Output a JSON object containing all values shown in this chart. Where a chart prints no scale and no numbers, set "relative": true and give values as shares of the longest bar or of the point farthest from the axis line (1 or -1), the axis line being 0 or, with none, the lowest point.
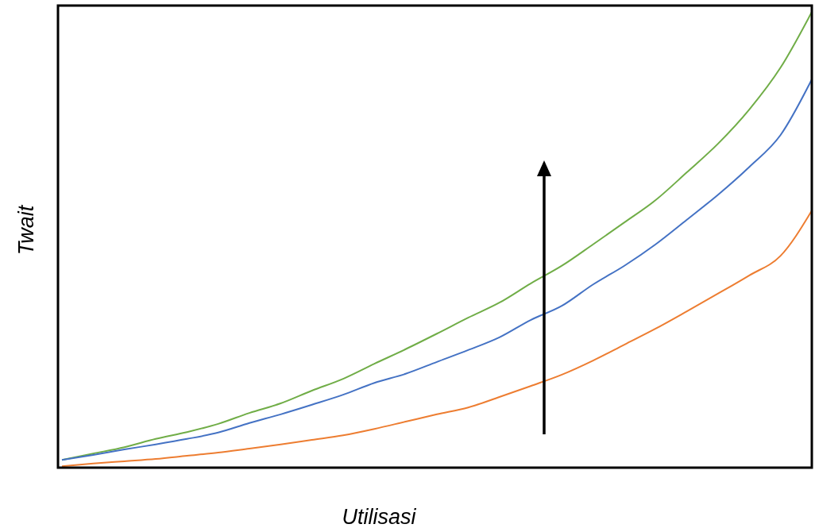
{
  "chart_data": {
    "type": "line",
    "relative": true,
    "xlabel": "Utilisasi",
    "ylabel": "Twait",
    "marker": "none",
    "line_style": "solid",
    "categories": [
      null,
      null,
      null,
      null,
      null,
      null,
      null,
      null,
      null,
      null,
      null,
      null,
      null,
      null,
      null,
      null,
      null,
      null,
      null,
      null,
      null,
      null,
      null,
      null,
      null
    ],
    "series": [
      {
        "color": "#70ad47",
        "values": [
          0.017,
          0.031,
          0.045,
          0.063,
          0.078,
          0.096,
          0.12,
          0.141,
          0.169,
          0.195,
          0.228,
          0.26,
          0.294,
          0.329,
          0.362,
          0.404,
          0.443,
          0.49,
          0.538,
          0.587,
          0.648,
          0.711,
          0.786,
          0.878,
          1
        ]
      },
      {
        "color": "#4472c4",
        "values": [
          0.017,
          0.028,
          0.04,
          0.051,
          0.063,
          0.077,
          0.098,
          0.117,
          0.138,
          0.16,
          0.186,
          0.206,
          0.232,
          0.258,
          0.286,
          0.324,
          0.355,
          0.402,
          0.443,
          0.49,
          0.544,
          0.599,
          0.66,
          0.73,
          0.852
        ]
      },
      {
        "color": "#ed7d31",
        "values": [
          0.003,
          0.009,
          0.014,
          0.019,
          0.026,
          0.033,
          0.042,
          0.051,
          0.061,
          0.071,
          0.085,
          0.101,
          0.117,
          0.132,
          0.155,
          0.179,
          0.204,
          0.235,
          0.27,
          0.305,
          0.343,
          0.382,
          0.422,
          0.465,
          0.564
        ]
      }
    ]
  }
}
